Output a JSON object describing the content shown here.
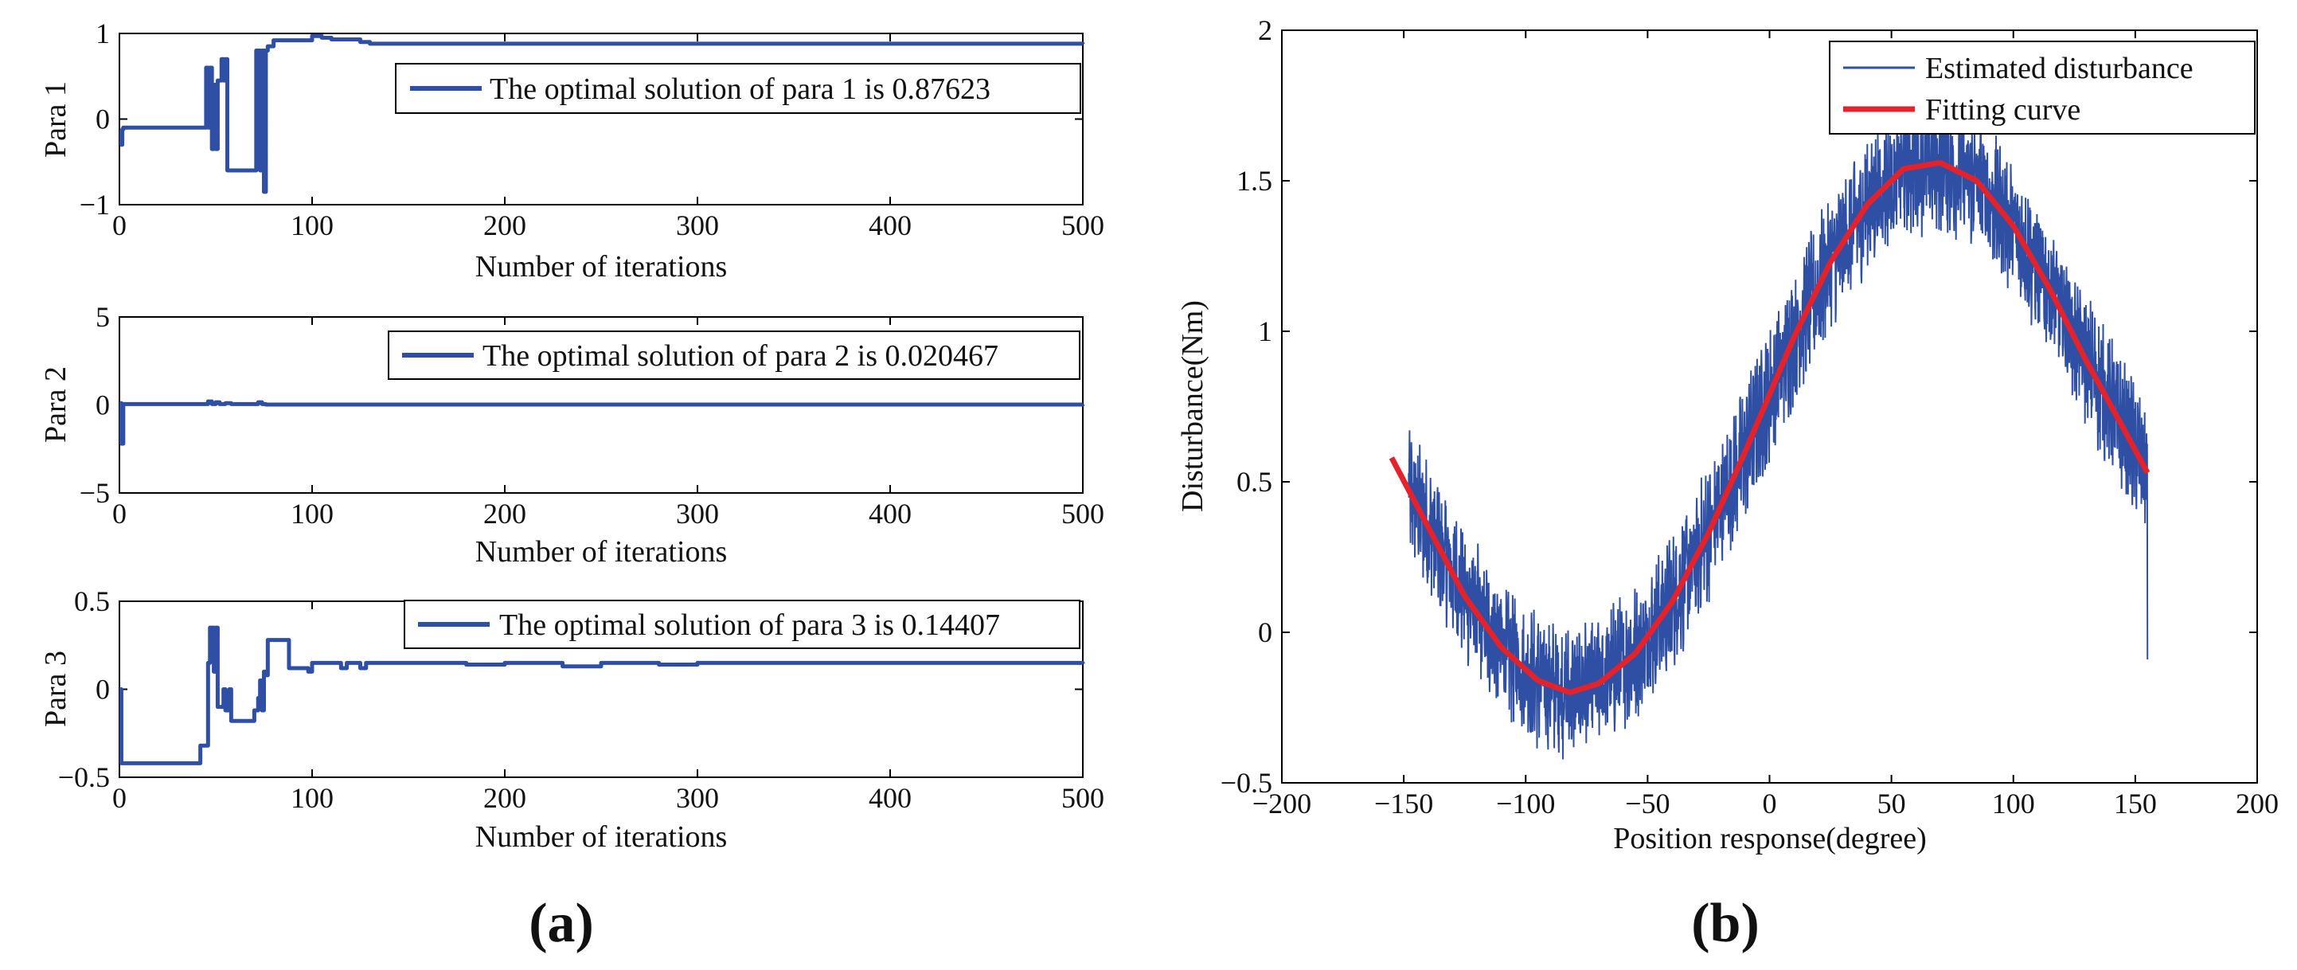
{
  "panel_labels": {
    "a": "(a)",
    "b": "(b)"
  },
  "colors": {
    "series_blue": "#2e4fa3",
    "fit_red": "#e3222b",
    "axis": "#000000"
  },
  "chart_data": [
    {
      "id": "para1",
      "type": "line",
      "title": "",
      "xlabel": "Number of iterations",
      "ylabel": "Para 1",
      "xlim": [
        0,
        500
      ],
      "ylim": [
        -1,
        1
      ],
      "xticks": [
        0,
        100,
        200,
        300,
        400,
        500
      ],
      "yticks": [
        -1,
        0,
        1
      ],
      "grid": false,
      "legend": "top-right",
      "series": [
        {
          "name": "The optimal solution of para 1 is 0.87623",
          "x": [
            0,
            1,
            1.5,
            2,
            3,
            44,
            45,
            46,
            47,
            48,
            49,
            50,
            51,
            52,
            53,
            54,
            55,
            56,
            57,
            58,
            59,
            60,
            70,
            71,
            72,
            73,
            74,
            75,
            76,
            77,
            78,
            80,
            90,
            100,
            105,
            110,
            125,
            130,
            500
          ],
          "values": [
            -0.15,
            -0.3,
            -0.12,
            -0.1,
            -0.1,
            -0.1,
            0.6,
            -0.1,
            0.6,
            -0.35,
            0.4,
            -0.35,
            0.45,
            0.45,
            0.7,
            0.45,
            0.7,
            -0.6,
            -0.6,
            -0.6,
            -0.6,
            -0.6,
            -0.6,
            0.8,
            0.8,
            -0.6,
            0.8,
            -0.85,
            0.8,
            0.85,
            0.85,
            0.92,
            0.92,
            0.97,
            0.95,
            0.93,
            0.9,
            0.88,
            0.87623
          ]
        }
      ]
    },
    {
      "id": "para2",
      "type": "line",
      "title": "",
      "xlabel": "Number of iterations",
      "ylabel": "Para 2",
      "xlim": [
        0,
        500
      ],
      "ylim": [
        -5,
        5
      ],
      "xticks": [
        0,
        100,
        200,
        300,
        400,
        500
      ],
      "yticks": [
        -5,
        0,
        5
      ],
      "grid": false,
      "legend": "top-right",
      "series": [
        {
          "name": "The optimal solution of para 2 is 0.020467",
          "x": [
            0,
            1,
            2,
            3,
            45,
            46,
            48,
            50,
            52,
            55,
            58,
            70,
            72,
            74,
            76,
            500
          ],
          "values": [
            0.1,
            -2.2,
            0.05,
            0.05,
            0.05,
            0.2,
            0.05,
            0.15,
            0.05,
            0.1,
            0.05,
            0.05,
            0.15,
            0.05,
            0.02,
            0.020467
          ]
        }
      ]
    },
    {
      "id": "para3",
      "type": "line",
      "title": "",
      "xlabel": "Number of iterations",
      "ylabel": "Para 3",
      "xlim": [
        0,
        500
      ],
      "ylim": [
        -0.5,
        0.5
      ],
      "xticks": [
        0,
        100,
        200,
        300,
        400,
        500
      ],
      "yticks": [
        -0.5,
        0,
        0.5
      ],
      "grid": false,
      "legend": "top-right",
      "series": [
        {
          "name": "The optimal solution of para 3 is 0.14407",
          "x": [
            0,
            1,
            2,
            40,
            42,
            44,
            46,
            47,
            48,
            49,
            50,
            51,
            52,
            53,
            54,
            55,
            56,
            57,
            58,
            68,
            70,
            72,
            73,
            74,
            75,
            76,
            77,
            78,
            86,
            88,
            95,
            98,
            100,
            110,
            115,
            118,
            125,
            128,
            130,
            180,
            200,
            230,
            250,
            280,
            300,
            500
          ],
          "values": [
            0.0,
            -0.42,
            -0.42,
            -0.42,
            -0.32,
            -0.32,
            0.15,
            0.35,
            0.35,
            0.1,
            0.35,
            -0.1,
            -0.1,
            -0.1,
            0.0,
            -0.12,
            -0.12,
            0.0,
            -0.18,
            -0.18,
            -0.12,
            -0.05,
            0.05,
            -0.12,
            0.1,
            0.08,
            0.28,
            0.28,
            0.28,
            0.12,
            0.12,
            0.1,
            0.15,
            0.15,
            0.12,
            0.15,
            0.12,
            0.15,
            0.15,
            0.14,
            0.15,
            0.13,
            0.15,
            0.14,
            0.15,
            0.14407
          ]
        }
      ]
    },
    {
      "id": "disturbance",
      "type": "line",
      "title": "",
      "xlabel": "Position response(degree)",
      "ylabel": "Disturbance(Nm)",
      "xlim": [
        -200,
        200
      ],
      "ylim": [
        -0.5,
        2
      ],
      "xticks": [
        -200,
        -150,
        -100,
        -50,
        0,
        50,
        100,
        150,
        200
      ],
      "yticks": [
        -0.5,
        0,
        0.5,
        1,
        1.5,
        2
      ],
      "grid": false,
      "legend": "top-right",
      "series": [
        {
          "name": "Estimated disturbance",
          "x_range": [
            -148,
            155
          ],
          "noise_amplitude": 0.18,
          "note": "dense noisy measurement scattered around fitting curve"
        },
        {
          "name": "Fitting curve",
          "x": [
            -155,
            -140,
            -125,
            -110,
            -95,
            -82,
            -70,
            -55,
            -40,
            -25,
            -10,
            0,
            10,
            25,
            40,
            55,
            70,
            85,
            100,
            115,
            130,
            145,
            155
          ],
          "values": [
            0.58,
            0.35,
            0.12,
            -0.05,
            -0.16,
            -0.2,
            -0.17,
            -0.07,
            0.1,
            0.33,
            0.6,
            0.79,
            0.98,
            1.23,
            1.42,
            1.54,
            1.56,
            1.5,
            1.35,
            1.14,
            0.9,
            0.68,
            0.53
          ]
        }
      ]
    }
  ]
}
